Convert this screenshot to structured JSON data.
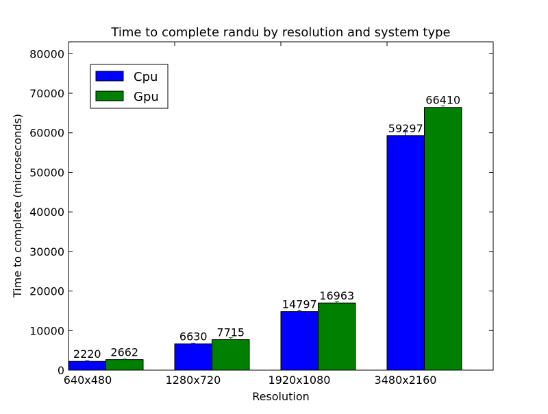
{
  "chart_data": {
    "type": "bar",
    "title": "Time to complete randu by resolution and system type",
    "xlabel": "Resolution",
    "ylabel": "Time to complete (microseconds)",
    "categories": [
      "640x480",
      "1280x720",
      "1920x1080",
      "3480x2160"
    ],
    "series": [
      {
        "name": "Cpu",
        "color": "#0000ff",
        "values": [
          2220,
          6630,
          14797,
          59297
        ],
        "errors": [
          150,
          150,
          300,
          1300
        ],
        "labels": [
          "2220",
          "6630",
          "14797",
          "59297"
        ]
      },
      {
        "name": "Gpu",
        "color": "#008000",
        "values": [
          2662,
          7715,
          16963,
          66410
        ],
        "errors": [
          150,
          500,
          400,
          400
        ],
        "labels": [
          "2662",
          "7715",
          "16963",
          "66410"
        ]
      }
    ],
    "ylim": [
      0,
      83000
    ],
    "yticks": [
      0,
      10000,
      20000,
      30000,
      40000,
      50000,
      60000,
      70000,
      80000
    ],
    "ytick_labels": [
      "0",
      "10000",
      "20000",
      "30000",
      "40000",
      "50000",
      "60000",
      "70000",
      "80000"
    ],
    "grid": false,
    "legend_position": "top-left"
  }
}
